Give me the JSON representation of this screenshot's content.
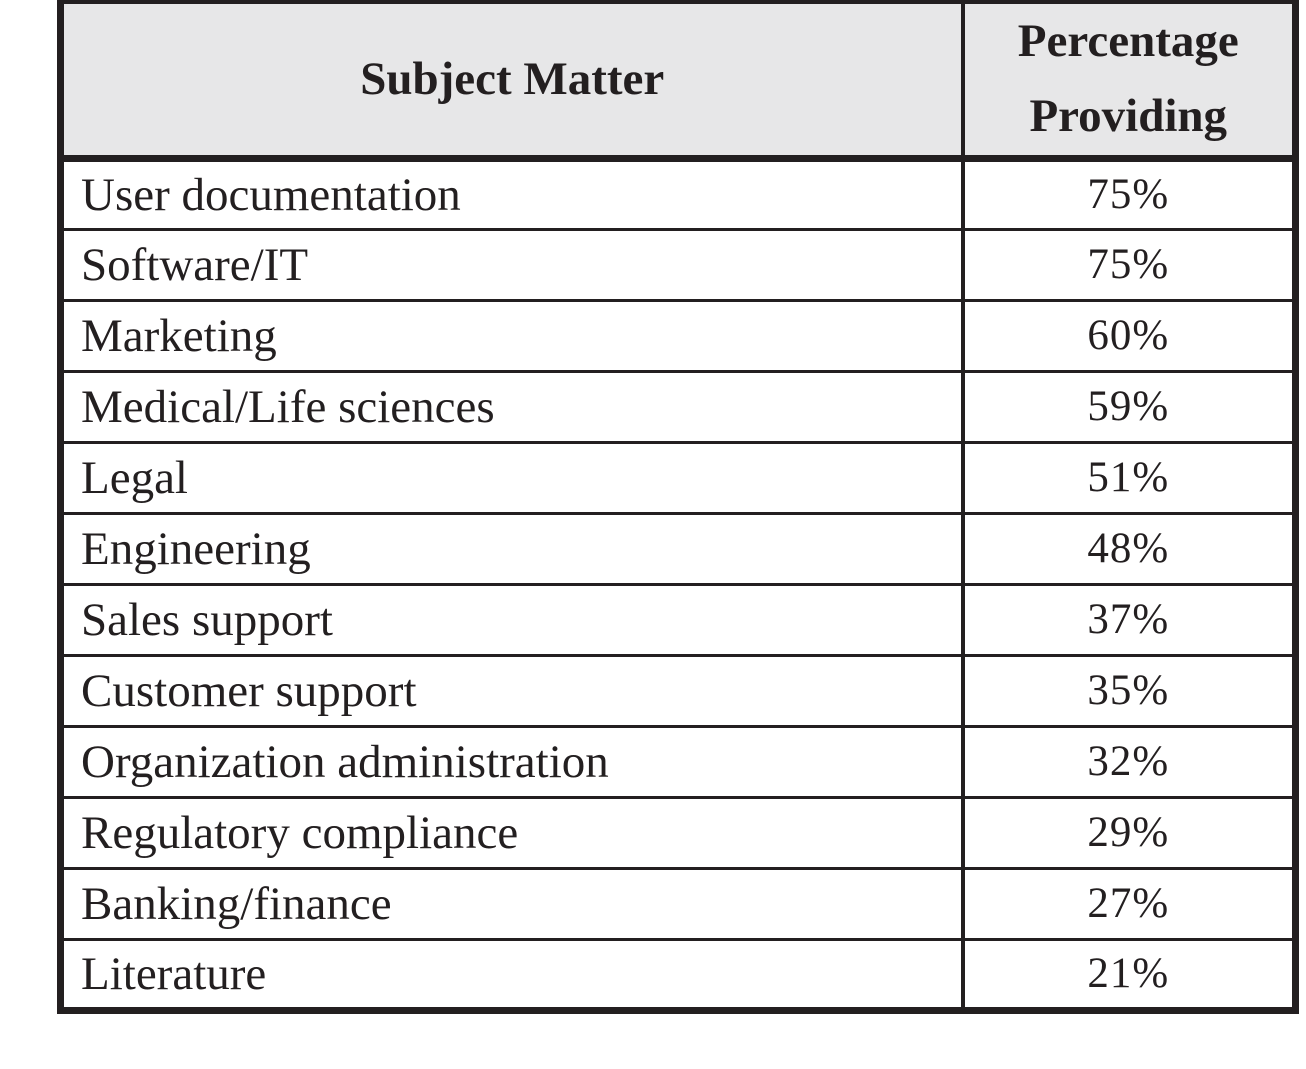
{
  "table": {
    "columns": [
      {
        "label": "Subject Matter"
      },
      {
        "label": "Percentage Providing"
      }
    ],
    "rows": [
      {
        "subject": "User documentation",
        "percentage": "75%"
      },
      {
        "subject": "Software/IT",
        "percentage": "75%"
      },
      {
        "subject": "Marketing",
        "percentage": "60%"
      },
      {
        "subject": "Medical/Life sciences",
        "percentage": "59%"
      },
      {
        "subject": "Legal",
        "percentage": "51%"
      },
      {
        "subject": "Engineering",
        "percentage": "48%"
      },
      {
        "subject": "Sales support",
        "percentage": "37%"
      },
      {
        "subject": "Customer support",
        "percentage": "35%"
      },
      {
        "subject": "Organization administration",
        "percentage": "32%"
      },
      {
        "subject": "Regulatory compliance",
        "percentage": "29%"
      },
      {
        "subject": "Banking/finance",
        "percentage": "27%"
      },
      {
        "subject": "Literature",
        "percentage": "21%"
      }
    ]
  },
  "colors": {
    "header_background": "#e7e7e8",
    "border": "#231f20",
    "text": "#231f20",
    "page_background": "#ffffff"
  }
}
